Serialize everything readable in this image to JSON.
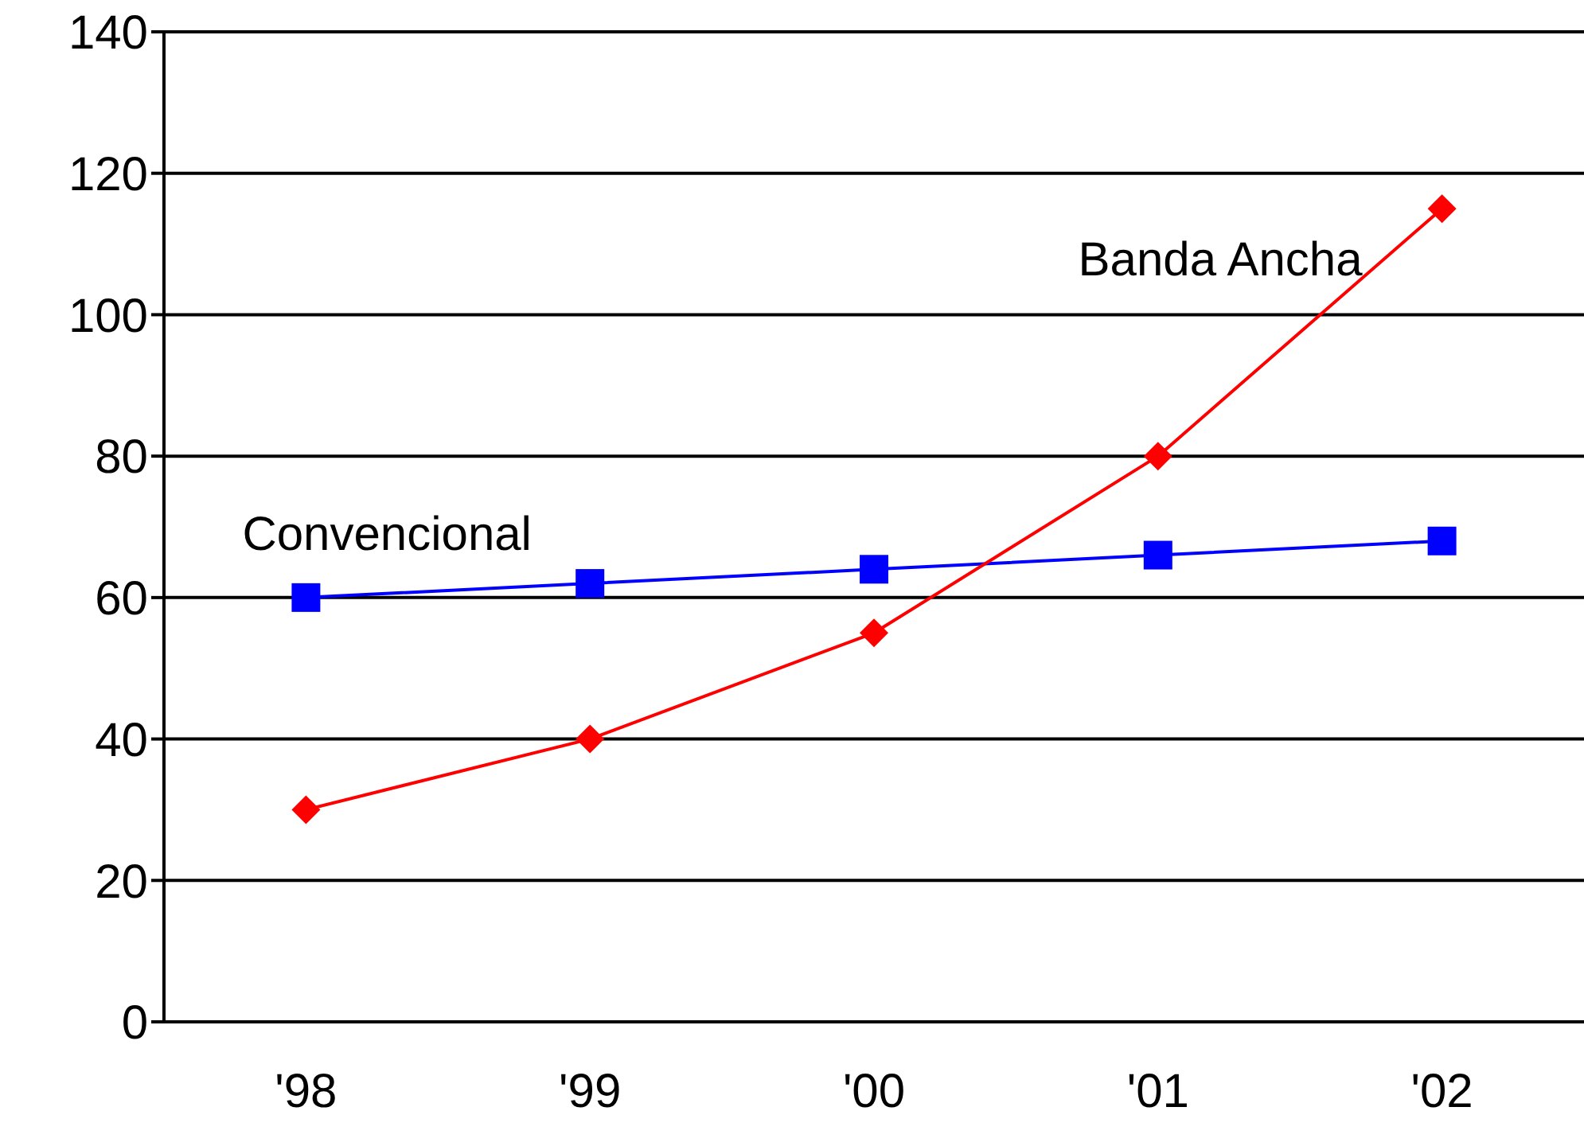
{
  "chart_data": {
    "type": "line",
    "categories": [
      "'98",
      "'99",
      "'00",
      "'01",
      "'02"
    ],
    "series": [
      {
        "name": "Convencional",
        "color": "#0000ff",
        "values": [
          60,
          62,
          64,
          66,
          68
        ],
        "marker": "square"
      },
      {
        "name": "Banda Ancha",
        "color": "#ff0000",
        "values": [
          30,
          40,
          55,
          80,
          115
        ],
        "marker": "diamond"
      }
    ],
    "ylim": [
      0,
      140
    ],
    "yticks": [
      0,
      20,
      40,
      60,
      80,
      100,
      120,
      140
    ],
    "grid": "y"
  }
}
